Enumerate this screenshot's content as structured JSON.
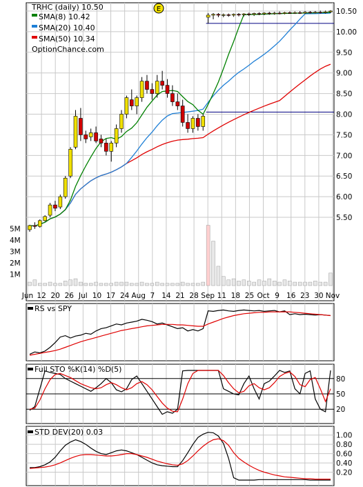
{
  "chart_data": [
    {
      "panel": "price",
      "type": "candlestick",
      "title": "TRHC (daily) 10.50",
      "watermark": "OptionChance.com",
      "legend": [
        {
          "text": "SMA(8) 10.42",
          "color": "#008000"
        },
        {
          "text": "SMA(20) 10.40",
          "color": "#1e7fd6"
        },
        {
          "text": "SMA(50) 10.34",
          "color": "#e00000"
        }
      ],
      "event_marker": "E",
      "y_ticks": [
        "10.50",
        "10.00",
        "9.50",
        "9.00",
        "8.50",
        "8.00",
        "7.50",
        "7.00",
        "6.50",
        "6.00",
        "5.50"
      ],
      "volume_ticks": [
        "5M",
        "4M",
        "3M",
        "2M",
        "1M"
      ],
      "x_ticks": [
        "Jun",
        "12",
        "20",
        "26",
        "Jul",
        "10",
        "17",
        "24",
        "Aug",
        "7",
        "14",
        "21",
        "28",
        "Sep",
        "11",
        "18",
        "25",
        "Oct",
        "9",
        "16",
        "23",
        "30",
        "Nov"
      ],
      "ylim": [
        5.25,
        10.6
      ],
      "horizontal_levels": [
        10.2,
        8.05
      ],
      "candles": [
        [
          5.2,
          5.32,
          5.15,
          5.3
        ],
        [
          5.3,
          5.38,
          5.22,
          5.28
        ],
        [
          5.28,
          5.45,
          5.25,
          5.42
        ],
        [
          5.42,
          5.55,
          5.4,
          5.52
        ],
        [
          5.55,
          5.85,
          5.5,
          5.8
        ],
        [
          5.8,
          5.9,
          5.65,
          5.72
        ],
        [
          5.75,
          6.05,
          5.7,
          6.0
        ],
        [
          6.0,
          6.5,
          5.95,
          6.45
        ],
        [
          6.5,
          7.2,
          6.45,
          7.15
        ],
        [
          7.2,
          8.1,
          7.15,
          7.95
        ],
        [
          7.9,
          8.15,
          7.35,
          7.5
        ],
        [
          7.5,
          7.6,
          7.3,
          7.4
        ],
        [
          7.45,
          7.65,
          7.35,
          7.55
        ],
        [
          7.55,
          7.7,
          7.3,
          7.35
        ],
        [
          7.4,
          7.5,
          7.2,
          7.3
        ],
        [
          7.3,
          7.4,
          7.0,
          7.1
        ],
        [
          7.1,
          7.35,
          6.85,
          7.3
        ],
        [
          7.3,
          7.75,
          7.2,
          7.65
        ],
        [
          7.65,
          8.1,
          7.55,
          8.0
        ],
        [
          8.0,
          8.45,
          7.9,
          8.4
        ],
        [
          8.35,
          8.6,
          8.1,
          8.2
        ],
        [
          8.2,
          8.45,
          8.0,
          8.4
        ],
        [
          8.4,
          8.9,
          8.3,
          8.8
        ],
        [
          8.8,
          8.95,
          8.5,
          8.6
        ],
        [
          8.6,
          8.75,
          8.35,
          8.5
        ],
        [
          8.5,
          8.95,
          8.4,
          8.8
        ],
        [
          8.8,
          9.05,
          8.6,
          8.7
        ],
        [
          8.7,
          8.85,
          8.4,
          8.5
        ],
        [
          8.5,
          8.7,
          8.2,
          8.3
        ],
        [
          8.3,
          8.5,
          8.1,
          8.2
        ],
        [
          8.2,
          8.35,
          7.7,
          7.8
        ],
        [
          7.8,
          8.0,
          7.55,
          7.65
        ],
        [
          7.65,
          7.95,
          7.55,
          7.9
        ],
        [
          7.9,
          8.0,
          7.6,
          7.7
        ],
        [
          7.7,
          8.0,
          7.6,
          7.95
        ],
        [
          10.35,
          10.45,
          10.2,
          10.4
        ],
        [
          10.4,
          10.45,
          10.3,
          10.42
        ],
        [
          10.42,
          10.45,
          10.35,
          10.4
        ],
        [
          10.4,
          10.44,
          10.35,
          10.41
        ],
        [
          10.41,
          10.44,
          10.36,
          10.4
        ],
        [
          10.4,
          10.44,
          10.36,
          10.42
        ],
        [
          10.42,
          10.45,
          10.37,
          10.41
        ],
        [
          10.41,
          10.45,
          10.37,
          10.43
        ],
        [
          10.43,
          10.46,
          10.38,
          10.42
        ],
        [
          10.42,
          10.46,
          10.38,
          10.44
        ],
        [
          10.44,
          10.47,
          10.4,
          10.43
        ],
        [
          10.43,
          10.47,
          10.4,
          10.45
        ],
        [
          10.45,
          10.48,
          10.41,
          10.44
        ],
        [
          10.44,
          10.48,
          10.41,
          10.45
        ],
        [
          10.45,
          10.49,
          10.42,
          10.44
        ],
        [
          10.44,
          10.48,
          10.42,
          10.46
        ],
        [
          10.46,
          10.49,
          10.43,
          10.45
        ],
        [
          10.45,
          10.49,
          10.43,
          10.46
        ],
        [
          10.46,
          10.5,
          10.43,
          10.45
        ],
        [
          10.45,
          10.5,
          10.43,
          10.47
        ],
        [
          10.47,
          10.5,
          10.44,
          10.46
        ],
        [
          10.46,
          10.5,
          10.44,
          10.47
        ],
        [
          10.47,
          10.51,
          10.44,
          10.46
        ],
        [
          10.46,
          10.51,
          10.44,
          10.48
        ],
        [
          10.48,
          10.52,
          10.45,
          10.5
        ]
      ],
      "volume_millions": [
        0.3,
        0.5,
        0.2,
        0.2,
        0.3,
        0.2,
        0.2,
        0.4,
        0.5,
        0.6,
        0.3,
        0.2,
        0.2,
        0.3,
        0.2,
        0.2,
        0.2,
        0.3,
        0.3,
        0.3,
        0.2,
        0.2,
        0.3,
        0.2,
        0.2,
        0.3,
        0.2,
        0.2,
        0.2,
        0.2,
        0.3,
        0.2,
        0.2,
        0.2,
        0.3,
        5.3,
        3.9,
        1.7,
        0.8,
        0.5,
        0.6,
        0.4,
        0.5,
        0.4,
        0.3,
        0.5,
        0.4,
        0.6,
        0.4,
        0.3,
        0.5,
        0.4,
        0.3,
        0.3,
        0.3,
        0.3,
        0.4,
        0.3,
        0.3,
        1.1
      ]
    },
    {
      "panel": "rs",
      "type": "line",
      "legend": [
        {
          "text": "RS vs SPY",
          "color": "#000000"
        }
      ],
      "series": [
        {
          "color": "#000000",
          "values": [
            0.05,
            0.1,
            0.08,
            0.12,
            0.2,
            0.3,
            0.42,
            0.45,
            0.4,
            0.44,
            0.46,
            0.5,
            0.48,
            0.55,
            0.6,
            0.62,
            0.66,
            0.7,
            0.68,
            0.72,
            0.74,
            0.76,
            0.8,
            0.78,
            0.75,
            0.7,
            0.72,
            0.68,
            0.64,
            0.6,
            0.62,
            0.55,
            0.58,
            0.55,
            0.6,
            0.98,
            0.97,
            0.99,
            1.0,
            0.98,
            0.97,
            0.99,
            1.0,
            0.99,
            0.98,
            0.99,
            0.97,
            0.98,
            0.99,
            0.96,
            0.98,
            0.9,
            0.92,
            0.9,
            0.91,
            0.9,
            0.89,
            0.9,
            0.89,
            0.88
          ]
        },
        {
          "color": "#e00000",
          "values": [
            0.03,
            0.05,
            0.07,
            0.09,
            0.11,
            0.13,
            0.16,
            0.2,
            0.24,
            0.28,
            0.32,
            0.35,
            0.38,
            0.41,
            0.44,
            0.47,
            0.5,
            0.53,
            0.56,
            0.58,
            0.6,
            0.62,
            0.64,
            0.66,
            0.67,
            0.68,
            0.69,
            0.69,
            0.69,
            0.68,
            0.68,
            0.67,
            0.66,
            0.65,
            0.65,
            0.7,
            0.74,
            0.78,
            0.82,
            0.85,
            0.88,
            0.9,
            0.92,
            0.93,
            0.94,
            0.95,
            0.95,
            0.96,
            0.96,
            0.96,
            0.96,
            0.96,
            0.95,
            0.94,
            0.93,
            0.92,
            0.91,
            0.9,
            0.89,
            0.88
          ]
        }
      ]
    },
    {
      "panel": "stochastic",
      "type": "line",
      "legend": [
        {
          "text": "Full STO %K(14) %D(5)",
          "color": "#000000"
        }
      ],
      "y_ticks": [
        "80",
        "50",
        "20"
      ],
      "ylim": [
        0,
        100
      ],
      "series": [
        {
          "color": "#000000",
          "values": [
            18,
            25,
            60,
            95,
            92,
            90,
            88,
            80,
            75,
            70,
            65,
            60,
            55,
            62,
            70,
            80,
            72,
            58,
            54,
            60,
            78,
            85,
            70,
            55,
            40,
            25,
            10,
            15,
            12,
            20,
            95,
            96,
            96,
            96,
            96,
            96,
            96,
            96,
            60,
            55,
            50,
            48,
            70,
            85,
            60,
            40,
            70,
            75,
            85,
            96,
            92,
            95,
            60,
            50,
            90,
            95,
            40,
            20,
            15,
            96
          ]
        },
        {
          "color": "#e00000",
          "values": [
            20,
            22,
            38,
            60,
            78,
            88,
            90,
            86,
            82,
            76,
            70,
            66,
            62,
            60,
            62,
            68,
            72,
            68,
            62,
            58,
            62,
            70,
            74,
            68,
            58,
            45,
            32,
            22,
            16,
            15,
            40,
            70,
            90,
            96,
            96,
            96,
            96,
            96,
            86,
            72,
            60,
            52,
            55,
            66,
            70,
            62,
            58,
            62,
            72,
            84,
            90,
            93,
            84,
            68,
            64,
            78,
            82,
            60,
            35,
            60
          ]
        }
      ]
    },
    {
      "panel": "std_dev",
      "type": "line",
      "legend": [
        {
          "text": "STD DEV(20) 0.03",
          "color": "#000000"
        }
      ],
      "y_ticks": [
        "1.00",
        "0.80",
        "0.60",
        "0.40",
        "0.20"
      ],
      "ylim": [
        0,
        1.1
      ],
      "series": [
        {
          "color": "#000000",
          "values": [
            0.3,
            0.3,
            0.32,
            0.36,
            0.42,
            0.52,
            0.66,
            0.78,
            0.85,
            0.9,
            0.86,
            0.8,
            0.72,
            0.65,
            0.6,
            0.58,
            0.62,
            0.66,
            0.68,
            0.66,
            0.62,
            0.58,
            0.52,
            0.46,
            0.4,
            0.36,
            0.34,
            0.33,
            0.32,
            0.32,
            0.45,
            0.62,
            0.8,
            0.95,
            1.02,
            1.06,
            1.05,
            0.98,
            0.82,
            0.5,
            0.08,
            0.03,
            0.03,
            0.03,
            0.03,
            0.04,
            0.04,
            0.04,
            0.04,
            0.04,
            0.04,
            0.04,
            0.04,
            0.04,
            0.04,
            0.03,
            0.03,
            0.03,
            0.03,
            0.03
          ]
        },
        {
          "color": "#e00000",
          "values": [
            0.28,
            0.29,
            0.3,
            0.31,
            0.33,
            0.36,
            0.4,
            0.45,
            0.5,
            0.54,
            0.57,
            0.58,
            0.58,
            0.57,
            0.56,
            0.55,
            0.55,
            0.56,
            0.58,
            0.6,
            0.6,
            0.58,
            0.55,
            0.52,
            0.48,
            0.44,
            0.41,
            0.38,
            0.36,
            0.35,
            0.38,
            0.45,
            0.55,
            0.66,
            0.76,
            0.84,
            0.9,
            0.92,
            0.88,
            0.78,
            0.62,
            0.5,
            0.42,
            0.35,
            0.29,
            0.24,
            0.2,
            0.17,
            0.14,
            0.12,
            0.1,
            0.09,
            0.08,
            0.07,
            0.06,
            0.06,
            0.05,
            0.05,
            0.05,
            0.05
          ]
        }
      ]
    }
  ]
}
